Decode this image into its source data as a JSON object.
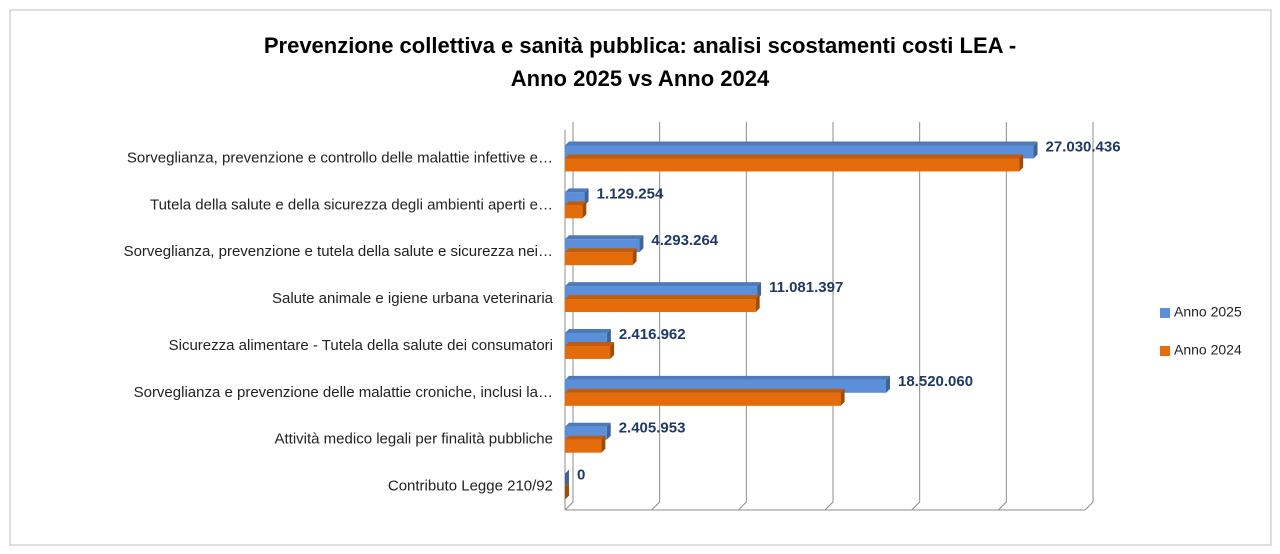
{
  "chart_data": {
    "type": "bar",
    "orientation": "horizontal",
    "three_d": true,
    "title": "Prevenzione collettiva e sanità pubblica: analisi scostamenti costi LEA -",
    "subtitle": "Anno 2025 vs Anno 2024",
    "categories": [
      "Sorveglianza, prevenzione e controllo delle malattie infettive e…",
      "Tutela della salute e della sicurezza degli ambienti aperti e…",
      "Sorveglianza, prevenzione e tutela della salute e sicurezza nei…",
      "Salute animale e igiene urbana veterinaria",
      "Sicurezza alimentare - Tutela della salute dei consumatori",
      "Sorveglianza e prevenzione delle malattie croniche, inclusi la…",
      "Attività medico legali per finalità pubbliche",
      "Contributo Legge 210/92"
    ],
    "series": [
      {
        "name": "Anno 2025",
        "color": "#5b8fd9",
        "values": [
          27030436,
          1129254,
          4293264,
          11081397,
          2416962,
          18520060,
          2405953,
          0
        ],
        "value_labels": [
          "27.030.436",
          "1.129.254",
          "4.293.264",
          "11.081.397",
          "2.416.962",
          "18.520.060",
          "2.405.953",
          "0"
        ]
      },
      {
        "name": "Anno 2024",
        "color": "#e46c0a",
        "values": [
          26200000,
          1000000,
          3900000,
          11000000,
          2600000,
          15900000,
          2100000,
          0
        ]
      }
    ],
    "xlim": [
      0,
      30000000
    ],
    "xticks": [
      0,
      5000000,
      10000000,
      15000000,
      20000000,
      25000000,
      30000000
    ],
    "grid": true,
    "legend": "right"
  }
}
